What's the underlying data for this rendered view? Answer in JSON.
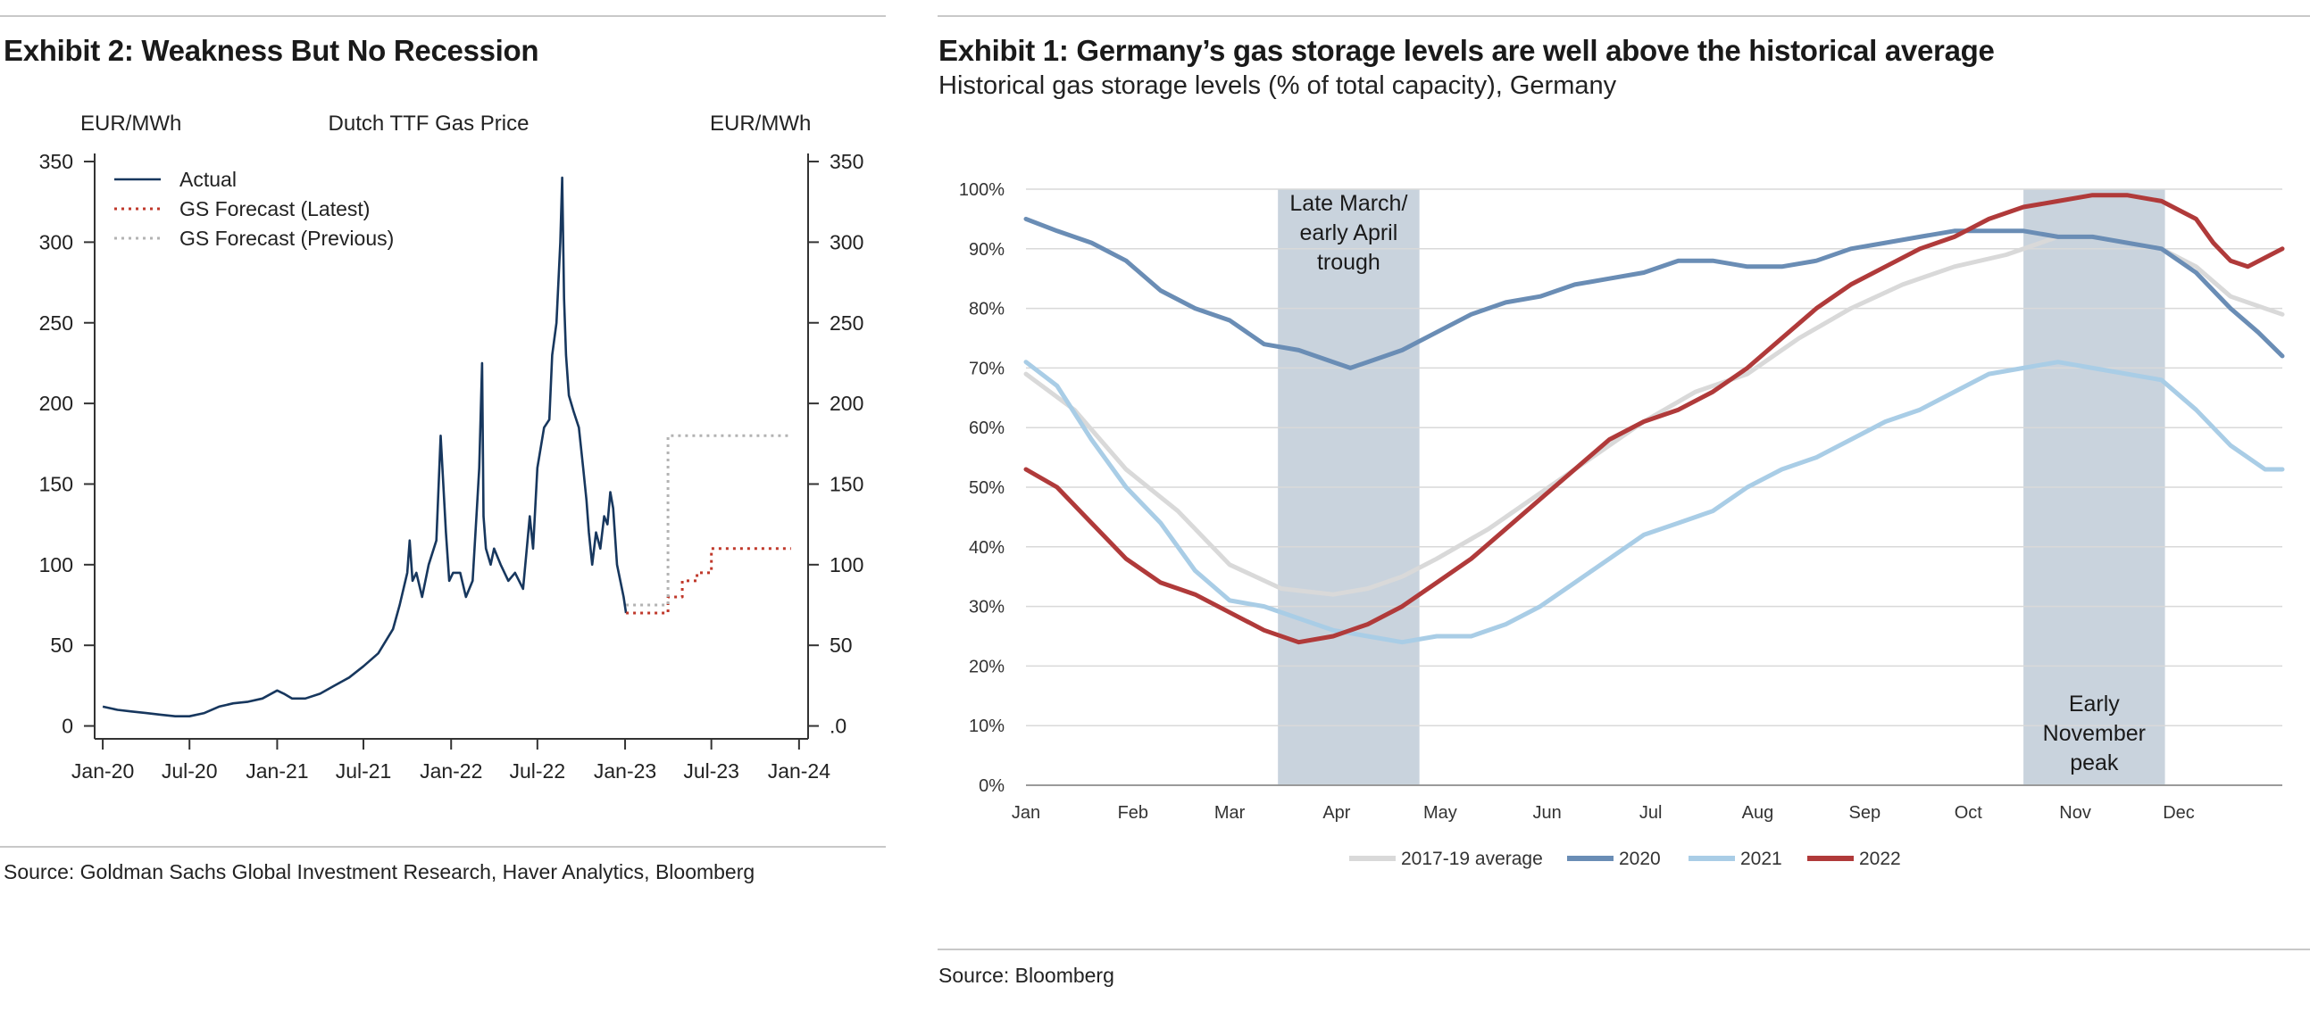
{
  "left": {
    "title": "Exhibit 2: Weakness But No Recession",
    "source": "Source: Goldman Sachs Global Investment Research, Haver Analytics, Bloomberg"
  },
  "right": {
    "title": "Exhibit 1: Germany’s gas storage levels are well above the historical average",
    "subtitle": "Historical gas storage levels (% of total capacity), Germany",
    "source": "Source: Bloomberg"
  },
  "chart_data": [
    {
      "type": "line",
      "title": "Dutch TTF Gas Price",
      "ylabel_left": "EUR/MWh",
      "ylabel_right": "EUR/MWh",
      "ylim": [
        -8,
        355
      ],
      "y_ticks_left": [
        "0",
        "50",
        "100",
        "150",
        "200",
        "250",
        "300",
        "350"
      ],
      "y_ticks_right": [
        ".0",
        "50",
        "100",
        "150",
        "200",
        "250",
        "300",
        "350"
      ],
      "y_tick_values": [
        0,
        50,
        100,
        150,
        200,
        250,
        300,
        350
      ],
      "x_ticks": [
        "Jan-20",
        "Jul-20",
        "Jan-21",
        "Jul-21",
        "Jan-22",
        "Jul-22",
        "Jan-23",
        "Jul-23",
        "Jan-24"
      ],
      "legend_position": "top-left",
      "legend": [
        "Actual",
        "GS Forecast (Latest)",
        "GS Forecast (Previous)"
      ],
      "colors": {
        "actual": "#17375e",
        "latest": "#c0392b",
        "previous": "#b3b3b3"
      },
      "series": [
        {
          "name": "Actual",
          "style": "solid",
          "x": [
            "2020-01-01",
            "2020-02-01",
            "2020-03-01",
            "2020-04-01",
            "2020-05-01",
            "2020-06-01",
            "2020-07-01",
            "2020-08-01",
            "2020-09-01",
            "2020-10-01",
            "2020-11-01",
            "2020-12-01",
            "2021-01-01",
            "2021-01-15",
            "2021-02-01",
            "2021-03-01",
            "2021-04-01",
            "2021-05-01",
            "2021-06-01",
            "2021-07-01",
            "2021-08-01",
            "2021-09-01",
            "2021-09-15",
            "2021-10-01",
            "2021-10-06",
            "2021-10-12",
            "2021-10-20",
            "2021-11-01",
            "2021-11-15",
            "2021-12-01",
            "2021-12-10",
            "2021-12-21",
            "2021-12-28",
            "2022-01-05",
            "2022-01-20",
            "2022-02-01",
            "2022-02-15",
            "2022-02-24",
            "2022-03-01",
            "2022-03-07",
            "2022-03-10",
            "2022-03-15",
            "2022-03-25",
            "2022-04-01",
            "2022-04-15",
            "2022-05-01",
            "2022-05-15",
            "2022-06-01",
            "2022-06-15",
            "2022-06-22",
            "2022-07-01",
            "2022-07-15",
            "2022-07-26",
            "2022-08-01",
            "2022-08-10",
            "2022-08-18",
            "2022-08-22",
            "2022-08-26",
            "2022-08-30",
            "2022-09-05",
            "2022-09-15",
            "2022-09-26",
            "2022-10-05",
            "2022-10-12",
            "2022-10-17",
            "2022-10-24",
            "2022-11-01",
            "2022-11-10",
            "2022-11-18",
            "2022-11-25",
            "2022-12-01",
            "2022-12-07",
            "2022-12-15",
            "2022-12-22",
            "2022-12-29",
            "2023-01-03"
          ],
          "values": [
            12,
            10,
            9,
            8,
            7,
            6,
            6,
            8,
            12,
            14,
            15,
            17,
            22,
            20,
            17,
            17,
            20,
            25,
            30,
            37,
            45,
            60,
            75,
            95,
            115,
            90,
            95,
            80,
            100,
            115,
            180,
            120,
            90,
            95,
            95,
            80,
            90,
            135,
            160,
            225,
            130,
            110,
            100,
            110,
            100,
            90,
            95,
            85,
            130,
            110,
            160,
            185,
            190,
            230,
            250,
            300,
            340,
            265,
            230,
            205,
            195,
            185,
            160,
            140,
            120,
            100,
            120,
            110,
            130,
            125,
            145,
            135,
            100,
            90,
            80,
            70
          ]
        },
        {
          "name": "GS Forecast (Latest)",
          "style": "dotted",
          "x": [
            "2023-01-03",
            "2023-04-01",
            "2023-04-01",
            "2023-05-01",
            "2023-05-01",
            "2023-06-01",
            "2023-06-01",
            "2023-07-01",
            "2023-07-01",
            "2023-12-15"
          ],
          "values": [
            70,
            70,
            80,
            80,
            90,
            90,
            95,
            95,
            110,
            110
          ]
        },
        {
          "name": "GS Forecast (Previous)",
          "style": "dotted",
          "x": [
            "2023-01-03",
            "2023-04-01",
            "2023-04-01",
            "2023-12-15"
          ],
          "values": [
            75,
            75,
            180,
            180
          ]
        }
      ]
    },
    {
      "type": "line",
      "title": "",
      "ylim": [
        0,
        100
      ],
      "y_ticks": [
        "0%",
        "10%",
        "20%",
        "30%",
        "40%",
        "50%",
        "60%",
        "70%",
        "80%",
        "90%",
        "100%"
      ],
      "y_tick_values": [
        0,
        10,
        20,
        30,
        40,
        50,
        60,
        70,
        80,
        90,
        100
      ],
      "x_ticks": [
        "Jan",
        "Feb",
        "Mar",
        "Apr",
        "May",
        "Jun",
        "Jul",
        "Aug",
        "Sep",
        "Oct",
        "Nov",
        "Dec"
      ],
      "x_tick_days": [
        1,
        32,
        60,
        91,
        121,
        152,
        182,
        213,
        244,
        274,
        305,
        335
      ],
      "x_range_days": [
        1,
        365
      ],
      "grid": "horizontal",
      "legend_position": "bottom",
      "shaded_regions": [
        {
          "from_day": 74,
          "to_day": 115,
          "label": [
            "Late March/",
            "early April",
            "trough"
          ]
        },
        {
          "from_day": 290,
          "to_day": 331,
          "label": [
            "Early",
            "November",
            "peak"
          ]
        }
      ],
      "series": [
        {
          "name": "2017-19 average",
          "color": "#d9d9d9",
          "x_day": [
            1,
            15,
            30,
            45,
            60,
            75,
            90,
            100,
            110,
            120,
            135,
            150,
            165,
            180,
            195,
            210,
            225,
            240,
            255,
            270,
            285,
            300,
            310,
            320,
            330,
            340,
            350,
            365
          ],
          "values": [
            69,
            63,
            53,
            46,
            37,
            33,
            32,
            33,
            35,
            38,
            43,
            49,
            55,
            61,
            66,
            69,
            75,
            80,
            84,
            87,
            89,
            92,
            92,
            91,
            90,
            87,
            82,
            79
          ]
        },
        {
          "name": "2020",
          "color": "#6a8db5",
          "x_day": [
            1,
            10,
            20,
            30,
            40,
            50,
            60,
            70,
            80,
            90,
            95,
            100,
            110,
            120,
            130,
            140,
            150,
            160,
            170,
            180,
            190,
            200,
            210,
            220,
            230,
            240,
            250,
            260,
            270,
            280,
            290,
            300,
            310,
            320,
            330,
            340,
            350,
            358,
            365
          ],
          "values": [
            95,
            93,
            91,
            88,
            83,
            80,
            78,
            74,
            73,
            71,
            70,
            71,
            73,
            76,
            79,
            81,
            82,
            84,
            85,
            86,
            88,
            88,
            87,
            87,
            88,
            90,
            91,
            92,
            93,
            93,
            93,
            92,
            92,
            91,
            90,
            86,
            80,
            76,
            72
          ]
        },
        {
          "name": "2021",
          "color": "#a9cde6",
          "x_day": [
            1,
            10,
            20,
            30,
            40,
            50,
            60,
            70,
            80,
            90,
            100,
            110,
            120,
            130,
            140,
            150,
            160,
            170,
            180,
            190,
            200,
            210,
            220,
            230,
            240,
            250,
            260,
            270,
            280,
            290,
            300,
            310,
            320,
            330,
            340,
            350,
            360,
            365
          ],
          "values": [
            71,
            67,
            58,
            50,
            44,
            36,
            31,
            30,
            28,
            26,
            25,
            24,
            25,
            25,
            27,
            30,
            34,
            38,
            42,
            44,
            46,
            50,
            53,
            55,
            58,
            61,
            63,
            66,
            69,
            70,
            71,
            70,
            69,
            68,
            63,
            57,
            53,
            53
          ]
        },
        {
          "name": "2022",
          "color": "#b03a3a",
          "x_day": [
            1,
            10,
            20,
            30,
            40,
            50,
            60,
            70,
            80,
            90,
            95,
            100,
            110,
            120,
            130,
            140,
            150,
            160,
            170,
            180,
            190,
            200,
            210,
            220,
            230,
            240,
            250,
            260,
            270,
            280,
            290,
            300,
            310,
            320,
            330,
            340,
            345,
            350,
            355,
            365
          ],
          "values": [
            53,
            50,
            44,
            38,
            34,
            32,
            29,
            26,
            24,
            25,
            26,
            27,
            30,
            34,
            38,
            43,
            48,
            53,
            58,
            61,
            63,
            66,
            70,
            75,
            80,
            84,
            87,
            90,
            92,
            95,
            97,
            98,
            99,
            99,
            98,
            95,
            91,
            88,
            87,
            90
          ]
        }
      ]
    }
  ]
}
